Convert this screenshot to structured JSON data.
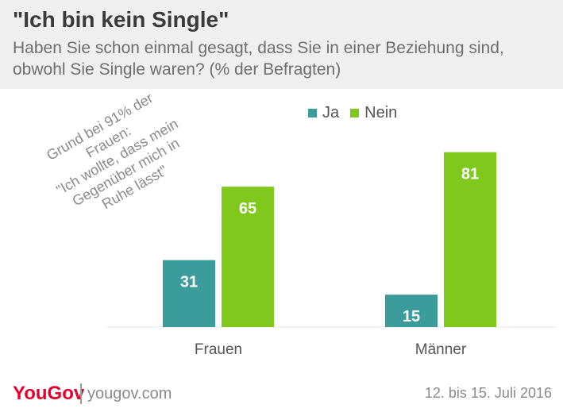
{
  "header": {
    "title": "\"Ich bin kein Single\"",
    "subtitle": "Haben Sie schon einmal gesagt, dass Sie in einer Beziehung sind, obwohl Sie Single waren? (% der Befragten)"
  },
  "annotation": {
    "lines": [
      "Grund bei 91% der",
      "Frauen:",
      "\"Ich wollte, dass mein",
      "Gegenüber mich in",
      "Ruhe lässt\""
    ]
  },
  "footer": {
    "logo": "YouGov",
    "url": "yougov.com",
    "date": "12. bis 15. Juli 2016"
  },
  "chart_data": {
    "type": "bar",
    "title": "\"Ich bin kein Single\"",
    "subtitle": "Haben Sie schon einmal gesagt, dass Sie in einer Beziehung sind, obwohl Sie Single waren? (% der Befragten)",
    "categories": [
      "Frauen",
      "Männer"
    ],
    "series": [
      {
        "name": "Ja",
        "color": "#3c9b9b",
        "values": [
          31,
          15
        ]
      },
      {
        "name": "Nein",
        "color": "#80c91c",
        "values": [
          65,
          81
        ]
      }
    ],
    "ylim": [
      0,
      100
    ],
    "grid": false,
    "legend": "top-right",
    "data_labels": true
  }
}
